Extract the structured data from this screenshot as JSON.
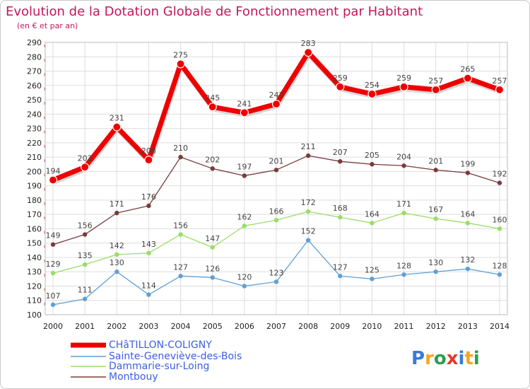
{
  "chart_data": {
    "type": "line",
    "title": "Evolution de la Dotation Globale de Fonctionnement par Habitant",
    "subtitle": "(en € et par an)",
    "xlabel": "",
    "ylabel": "",
    "categories": [
      "2000",
      "2001",
      "2002",
      "2003",
      "2004",
      "2005",
      "2006",
      "2007",
      "2008",
      "2009",
      "2010",
      "2011",
      "2012",
      "2013",
      "2014"
    ],
    "ylim": [
      100,
      290
    ],
    "yticks": [
      100,
      110,
      120,
      130,
      140,
      150,
      160,
      170,
      180,
      190,
      200,
      210,
      220,
      230,
      240,
      250,
      260,
      270,
      280,
      290
    ],
    "grid": true,
    "legend_position": "bottom-left",
    "series": [
      {
        "name": "CHâTILLON-COLIGNY",
        "color": "#ee0000",
        "values": [
          194,
          203,
          231,
          208,
          275,
          245,
          241,
          247,
          283,
          259,
          254,
          259,
          257,
          265,
          257
        ]
      },
      {
        "name": "Sainte-Geneviève-des-Bois",
        "color": "#5fa0d4",
        "values": [
          107,
          111,
          130,
          114,
          127,
          126,
          120,
          123,
          152,
          127,
          125,
          128,
          130,
          132,
          128
        ]
      },
      {
        "name": "Dammarie-sur-Loing",
        "color": "#99dd66",
        "values": [
          129,
          135,
          142,
          143,
          156,
          147,
          162,
          166,
          172,
          168,
          164,
          171,
          167,
          164,
          160
        ]
      },
      {
        "name": "Montbouy",
        "color": "#7a3b3b",
        "values": [
          149,
          156,
          171,
          176,
          210,
          202,
          197,
          201,
          211,
          207,
          205,
          204,
          201,
          199,
          192
        ]
      }
    ],
    "data_labels": {
      "CHâTILLON-COLIGNY": [
        "194",
        "203",
        "231",
        "208",
        "275",
        "245",
        "241",
        "247",
        "283",
        "259",
        "254",
        "259",
        "257",
        "265",
        "257"
      ],
      "Sainte-Geneviève-des-Bois": [
        "107",
        "111",
        "130",
        "114",
        "127",
        "126",
        "120",
        "123",
        "152",
        "127",
        "125",
        "128",
        "130",
        "132",
        "128"
      ],
      "Dammarie-sur-Loing": [
        "129",
        "135",
        "142",
        "143",
        "156",
        "147",
        "162",
        "166",
        "172",
        "168",
        "164",
        "171",
        "167",
        "164",
        "160"
      ],
      "Montbouy": [
        "149",
        "156",
        "171",
        "176",
        "210",
        "202",
        "197",
        "201",
        "211",
        "207",
        "205",
        "204",
        "201",
        "199",
        "192"
      ]
    }
  },
  "logo": {
    "letters": [
      "P",
      "r",
      "o",
      "x",
      "i",
      "t",
      "i"
    ],
    "colors": [
      "#3a7bd5",
      "#f5a623",
      "#2e9e4f",
      "#e23b2e",
      "#3a7bd5",
      "#f5a623",
      "#2e9e4f"
    ]
  }
}
